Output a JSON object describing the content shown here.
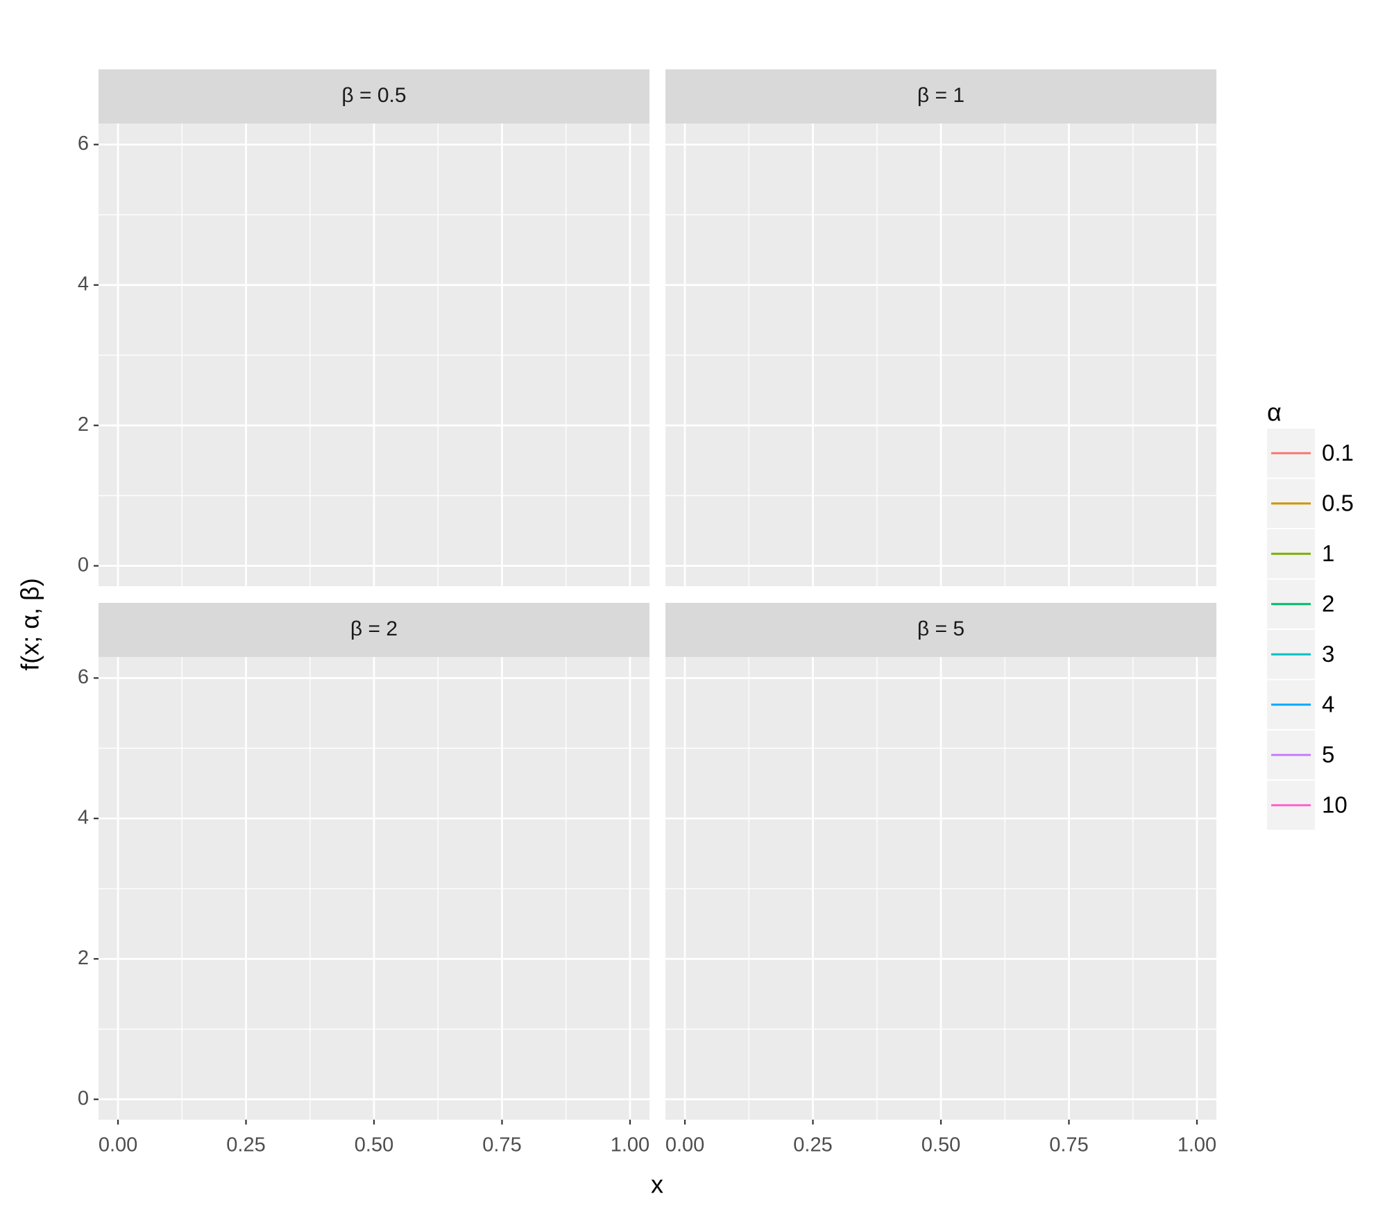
{
  "chart_data": {
    "type": "line",
    "facets": [
      {
        "title": "β = 0.5"
      },
      {
        "title": "β = 1"
      },
      {
        "title": "β = 2"
      },
      {
        "title": "β = 5"
      }
    ],
    "x_label": "x",
    "y_label": "f(x; α, β)",
    "xlim": [
      -0.038,
      1.038
    ],
    "ylim": [
      -0.29,
      6.3
    ],
    "xticks": [
      {
        "value": 0,
        "label": "0.00"
      },
      {
        "value": 0.25,
        "label": "0.25"
      },
      {
        "value": 0.5,
        "label": "0.50"
      },
      {
        "value": 0.75,
        "label": "0.75"
      },
      {
        "value": 1,
        "label": "1.00"
      }
    ],
    "yticks": [
      0,
      2,
      4,
      6
    ],
    "grid": true,
    "minor_grid": true,
    "legend_title": "α",
    "legend_position": "right",
    "series": [
      {
        "name": "0.1",
        "color": "#F8766D"
      },
      {
        "name": "0.5",
        "color": "#CD9600"
      },
      {
        "name": "1",
        "color": "#7CAE00"
      },
      {
        "name": "2",
        "color": "#00BE67"
      },
      {
        "name": "3",
        "color": "#00BFC4"
      },
      {
        "name": "4",
        "color": "#00A9FF"
      },
      {
        "name": "5",
        "color": "#C77CFF"
      },
      {
        "name": "10",
        "color": "#FF61CC"
      }
    ]
  }
}
